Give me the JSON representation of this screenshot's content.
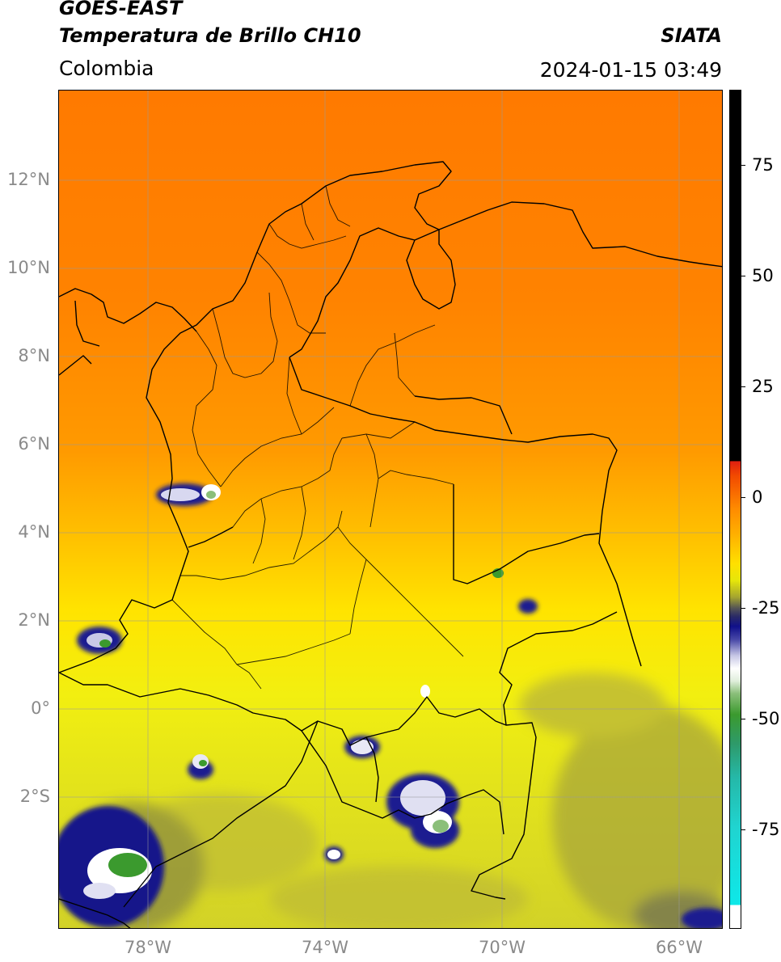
{
  "header": {
    "satellite": "GOES-EAST",
    "product": "Temperatura de Brillo CH10",
    "organization": "SIATA",
    "region": "Colombia",
    "datetime": "2024-01-15 03:49"
  },
  "map": {
    "lat_labels": [
      "12°N",
      "10°N",
      "8°N",
      "6°N",
      "4°N",
      "2°N",
      "0°",
      "2°S"
    ],
    "lon_labels": [
      "78°W",
      "74°W",
      "70°W",
      "66°W"
    ]
  },
  "colorbar": {
    "ticks": [
      "75",
      "50",
      "25",
      "0",
      "-25",
      "-50",
      "-75"
    ],
    "colors": {
      "warm": "#ff8c00",
      "mid": "#ffe000",
      "cold": "#10108a",
      "coldest": "#0ee8e8",
      "above_range": "#000000"
    }
  }
}
